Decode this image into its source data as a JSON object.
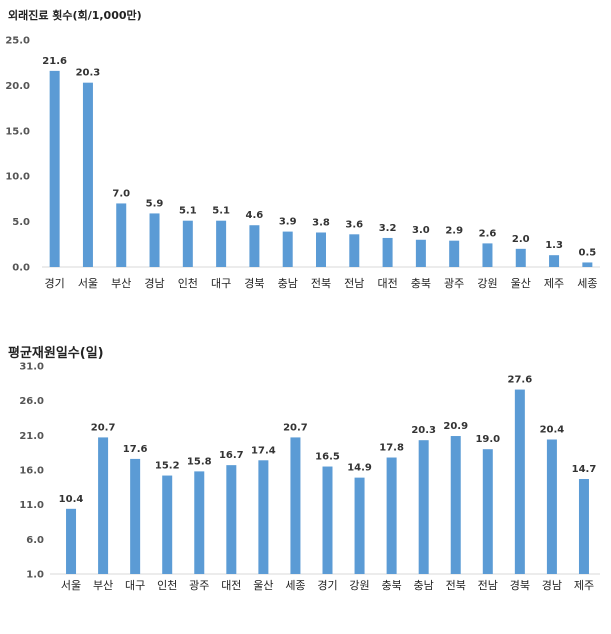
{
  "chart_data": [
    {
      "type": "bar",
      "title": "외래진료 횟수(회/1,000만)",
      "xlabel": "",
      "ylabel": "",
      "ylim": [
        0,
        25
      ],
      "yticks": [
        "0.0",
        "5.0",
        "10.0",
        "15.0",
        "20.0",
        "25.0"
      ],
      "grid": false,
      "categories": [
        "경기",
        "서울",
        "부산",
        "경남",
        "인천",
        "대구",
        "경북",
        "충남",
        "전북",
        "전남",
        "대전",
        "충북",
        "광주",
        "강원",
        "울산",
        "제주",
        "세종"
      ],
      "values": [
        21.6,
        20.3,
        7.0,
        5.9,
        5.1,
        5.1,
        4.6,
        3.9,
        3.8,
        3.6,
        3.2,
        3.0,
        2.9,
        2.6,
        2.0,
        1.3,
        0.5
      ],
      "value_labels": [
        "21.6",
        "20.3",
        "7.0",
        "5.9",
        "5.1",
        "5.1",
        "4.6",
        "3.9",
        "3.8",
        "3.6",
        "3.2",
        "3.0",
        "2.9",
        "2.6",
        "2.0",
        "1.3",
        "0.5"
      ],
      "color": "#5b9bd5"
    },
    {
      "type": "bar",
      "title": "평균재원일수(일)",
      "xlabel": "",
      "ylabel": "",
      "ylim": [
        1,
        31
      ],
      "yticks": [
        "1.0",
        "6.0",
        "11.0",
        "16.0",
        "21.0",
        "26.0",
        "31.0"
      ],
      "grid": false,
      "categories": [
        "서울",
        "부산",
        "대구",
        "인천",
        "광주",
        "대전",
        "울산",
        "세종",
        "경기",
        "강원",
        "충북",
        "충남",
        "전북",
        "전남",
        "경북",
        "경남",
        "제주"
      ],
      "values": [
        10.4,
        20.7,
        17.6,
        15.2,
        15.8,
        16.7,
        17.4,
        20.7,
        16.5,
        14.9,
        17.8,
        20.3,
        20.9,
        19.0,
        27.6,
        20.4,
        14.7
      ],
      "value_labels": [
        "10.4",
        "20.7",
        "17.6",
        "15.2",
        "15.8",
        "16.7",
        "17.4",
        "20.7",
        "16.5",
        "14.9",
        "17.8",
        "20.3",
        "20.9",
        "19.0",
        "27.6",
        "20.4",
        "14.7"
      ],
      "color": "#5b9bd5"
    }
  ]
}
